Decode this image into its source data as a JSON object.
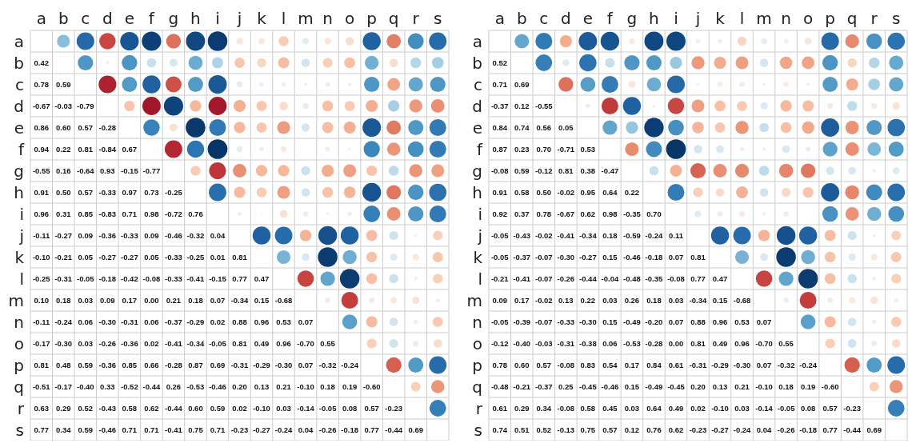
{
  "chart_data": [
    {
      "type": "heatmap",
      "categories": [
        "a",
        "b",
        "c",
        "d",
        "e",
        "f",
        "g",
        "h",
        "i",
        "j",
        "k",
        "l",
        "m",
        "n",
        "o",
        "p",
        "q",
        "r",
        "s"
      ],
      "y_categories": [
        "a",
        "b",
        "c",
        "d",
        "e",
        "f",
        "g",
        "h",
        "i",
        "j",
        "k",
        "l",
        "m",
        "n",
        "o",
        "p",
        "q",
        "r",
        "s"
      ],
      "grid": true,
      "cells": [
        [
          null,
          null,
          null,
          null,
          null,
          null,
          null,
          null,
          null,
          null,
          null,
          null,
          null,
          null,
          null,
          null,
          null,
          null,
          null
        ],
        [
          0.42,
          null,
          null,
          null,
          null,
          null,
          null,
          null,
          null,
          null,
          null,
          null,
          null,
          null,
          null,
          null,
          null,
          null,
          null
        ],
        [
          0.78,
          0.59,
          null,
          null,
          null,
          null,
          null,
          null,
          null,
          null,
          null,
          null,
          null,
          null,
          null,
          null,
          null,
          null,
          null
        ],
        [
          -0.67,
          -0.03,
          -0.79,
          null,
          null,
          null,
          null,
          null,
          null,
          null,
          null,
          null,
          null,
          null,
          null,
          null,
          null,
          null,
          null
        ],
        [
          0.86,
          0.6,
          0.57,
          -0.28,
          null,
          null,
          null,
          null,
          null,
          null,
          null,
          null,
          null,
          null,
          null,
          null,
          null,
          null,
          null
        ],
        [
          0.94,
          0.22,
          0.81,
          -0.84,
          0.67,
          null,
          null,
          null,
          null,
          null,
          null,
          null,
          null,
          null,
          null,
          null,
          null,
          null,
          null
        ],
        [
          -0.55,
          0.16,
          -0.64,
          0.93,
          -0.15,
          -0.77,
          null,
          null,
          null,
          null,
          null,
          null,
          null,
          null,
          null,
          null,
          null,
          null,
          null
        ],
        [
          0.91,
          0.5,
          0.57,
          -0.33,
          0.97,
          0.73,
          -0.25,
          null,
          null,
          null,
          null,
          null,
          null,
          null,
          null,
          null,
          null,
          null,
          null
        ],
        [
          0.96,
          0.31,
          0.85,
          -0.83,
          0.71,
          0.98,
          -0.72,
          0.76,
          null,
          null,
          null,
          null,
          null,
          null,
          null,
          null,
          null,
          null,
          null
        ],
        [
          -0.11,
          -0.27,
          0.09,
          -0.36,
          -0.33,
          0.09,
          -0.46,
          -0.32,
          0.04,
          null,
          null,
          null,
          null,
          null,
          null,
          null,
          null,
          null,
          null
        ],
        [
          -0.1,
          -0.21,
          0.05,
          -0.27,
          -0.27,
          0.05,
          -0.33,
          -0.25,
          0.01,
          0.81,
          null,
          null,
          null,
          null,
          null,
          null,
          null,
          null,
          null
        ],
        [
          -0.25,
          -0.31,
          -0.05,
          -0.18,
          -0.42,
          -0.08,
          -0.33,
          -0.41,
          -0.15,
          0.77,
          0.47,
          null,
          null,
          null,
          null,
          null,
          null,
          null,
          null
        ],
        [
          0.1,
          0.18,
          0.03,
          0.09,
          0.17,
          0.0,
          0.21,
          0.18,
          0.07,
          -0.34,
          0.15,
          -0.68,
          null,
          null,
          null,
          null,
          null,
          null,
          null
        ],
        [
          -0.11,
          -0.24,
          0.06,
          -0.3,
          -0.31,
          0.06,
          -0.37,
          -0.29,
          0.02,
          0.88,
          0.96,
          0.53,
          0.07,
          null,
          null,
          null,
          null,
          null,
          null
        ],
        [
          -0.17,
          -0.3,
          0.03,
          -0.26,
          -0.36,
          0.02,
          -0.41,
          -0.34,
          -0.05,
          0.81,
          0.49,
          0.96,
          -0.7,
          0.55,
          null,
          null,
          null,
          null,
          null
        ],
        [
          0.81,
          0.48,
          0.59,
          -0.36,
          0.85,
          0.66,
          -0.28,
          0.87,
          0.69,
          -0.31,
          -0.29,
          -0.3,
          0.07,
          -0.32,
          -0.24,
          null,
          null,
          null,
          null
        ],
        [
          -0.51,
          -0.17,
          -0.4,
          0.33,
          -0.52,
          -0.44,
          0.26,
          -0.53,
          -0.46,
          0.2,
          0.13,
          0.21,
          -0.1,
          0.18,
          0.19,
          -0.6,
          null,
          null,
          null
        ],
        [
          0.63,
          0.29,
          0.52,
          -0.43,
          0.58,
          0.62,
          -0.44,
          0.6,
          0.59,
          0.02,
          -0.1,
          0.03,
          -0.14,
          -0.05,
          0.08,
          0.57,
          -0.23,
          null,
          null
        ],
        [
          0.77,
          0.34,
          0.59,
          -0.46,
          0.71,
          0.71,
          -0.41,
          0.75,
          0.71,
          -0.23,
          -0.27,
          -0.24,
          0.04,
          -0.26,
          -0.18,
          0.77,
          -0.44,
          0.69,
          null
        ]
      ],
      "cell_labels": [
        [
          null,
          null,
          null,
          null,
          null,
          null,
          null,
          null,
          null,
          null,
          null,
          null,
          null,
          null,
          null,
          null,
          null,
          null,
          null
        ],
        [
          "0.42",
          null,
          null,
          null,
          null,
          null,
          null,
          null,
          null,
          null,
          null,
          null,
          null,
          null,
          null,
          null,
          null,
          null,
          null
        ],
        [
          "0.78",
          "0.59",
          null,
          null,
          null,
          null,
          null,
          null,
          null,
          null,
          null,
          null,
          null,
          null,
          null,
          null,
          null,
          null,
          null
        ],
        [
          "-0.67",
          "-0.03",
          "-0.79",
          null,
          null,
          null,
          null,
          null,
          null,
          null,
          null,
          null,
          null,
          null,
          null,
          null,
          null,
          null,
          null
        ],
        [
          "0.86",
          "0.60",
          "0.57",
          "-0.28",
          null,
          null,
          null,
          null,
          null,
          null,
          null,
          null,
          null,
          null,
          null,
          null,
          null,
          null,
          null
        ],
        [
          "0.94",
          "0.22",
          "0.81",
          "-0.84",
          "0.67",
          null,
          null,
          null,
          null,
          null,
          null,
          null,
          null,
          null,
          null,
          null,
          null,
          null,
          null
        ],
        [
          "-0.55",
          "0.16",
          "-0.64",
          "0.93",
          "-0.15",
          "-0.77",
          null,
          null,
          null,
          null,
          null,
          null,
          null,
          null,
          null,
          null,
          null,
          null,
          null
        ],
        [
          "0.91",
          "0.50",
          "0.57",
          "-0.33",
          "0.97",
          "0.73",
          "-0.25",
          null,
          null,
          null,
          null,
          null,
          null,
          null,
          null,
          null,
          null,
          null,
          null
        ],
        [
          "0.96",
          "0.31",
          "0.85",
          "-0.83",
          "0.71",
          "0.98",
          "-0.72",
          "0.76",
          null,
          null,
          null,
          null,
          null,
          null,
          null,
          null,
          null,
          null,
          null
        ],
        [
          "-0.11",
          "-0.27",
          "0.09",
          "-0.36",
          "-0.33",
          "0.09",
          "-0.46",
          "-0.32",
          "0.04",
          null,
          null,
          null,
          null,
          null,
          null,
          null,
          null,
          null,
          null
        ],
        [
          "-0.10",
          "-0.21",
          "0.05",
          "-0.27",
          "-0.27",
          "0.05",
          "-0.33",
          "-0.25",
          "0.01",
          "0.81",
          null,
          null,
          null,
          null,
          null,
          null,
          null,
          null,
          null
        ],
        [
          "-0.25",
          "-0.31",
          "-0.05",
          "-0.18",
          "-0.42",
          "-0.08",
          "-0.33",
          "-0.41",
          "-0.15",
          "0.77",
          "0.47",
          null,
          null,
          null,
          null,
          null,
          null,
          null,
          null
        ],
        [
          "0.10",
          "0.18",
          "0.03",
          "0.09",
          "0.17",
          "0.00",
          "0.21",
          "0.18",
          "0.07",
          "-0.34",
          "0.15",
          "-0.68",
          null,
          null,
          null,
          null,
          null,
          null,
          null
        ],
        [
          "-0.11",
          "-0.24",
          "0.06",
          "-0.30",
          "-0.31",
          "0.06",
          "-0.37",
          "-0.29",
          "0.02",
          "0.88",
          "0.96",
          "0.53",
          "0.07",
          null,
          null,
          null,
          null,
          null,
          null
        ],
        [
          "-0.17",
          "-0.30",
          "0.03",
          "-0.26",
          "-0.36",
          "0.02",
          "-0.41",
          "-0.34",
          "-0.05",
          "0.81",
          "0.49",
          "0.96",
          "-0.70",
          "0.55",
          null,
          null,
          null,
          null,
          null
        ],
        [
          "0.81",
          "0.48",
          "0.59",
          "-0.36",
          "0.85",
          "0.66",
          "-0.28",
          "0.87",
          "0.69",
          "-0.31",
          "-0.29",
          "-0.30",
          "0.07",
          "-0.32",
          "-0.24",
          null,
          null,
          null,
          null
        ],
        [
          "-0.51",
          "-0.17",
          "-0.40",
          "0.33",
          "-0.52",
          "-0.44",
          "0.26",
          "-0.53",
          "-0.46",
          "0.20",
          "0.13",
          "0.21",
          "-0.10",
          "0.18",
          "0.19",
          "-0.60",
          null,
          null,
          null
        ],
        [
          "0.63",
          "0.29",
          "0.52",
          "-0.43",
          "0.58",
          "0.62",
          "-0.44",
          "0.60",
          "0.59",
          "0.02",
          "-0.10",
          "0.03",
          "-0.14",
          "-0.05",
          "0.08",
          "0.57",
          "-0.23",
          null,
          null
        ],
        [
          "0.77",
          "0.34",
          "0.59",
          "-0.46",
          "0.71",
          "0.71",
          "-0.41",
          "0.75",
          "0.71",
          "-0.23",
          "-0.27",
          "-0.24",
          "0.04",
          "-0.26",
          "-0.18",
          "0.77",
          "-0.44",
          "0.69",
          null
        ]
      ]
    },
    {
      "type": "heatmap",
      "categories": [
        "a",
        "b",
        "c",
        "d",
        "e",
        "f",
        "g",
        "h",
        "i",
        "j",
        "k",
        "l",
        "m",
        "n",
        "o",
        "p",
        "q",
        "r",
        "s"
      ],
      "y_categories": [
        "a",
        "b",
        "c",
        "d",
        "e",
        "f",
        "g",
        "h",
        "i",
        "j",
        "k",
        "l",
        "m",
        "n",
        "o",
        "p",
        "q",
        "r",
        "s"
      ],
      "grid": true,
      "cells": [
        [
          null,
          null,
          null,
          null,
          null,
          null,
          null,
          null,
          null,
          null,
          null,
          null,
          null,
          null,
          null,
          null,
          null,
          null,
          null
        ],
        [
          0.52,
          null,
          null,
          null,
          null,
          null,
          null,
          null,
          null,
          null,
          null,
          null,
          null,
          null,
          null,
          null,
          null,
          null,
          null
        ],
        [
          0.71,
          0.69,
          null,
          null,
          null,
          null,
          null,
          null,
          null,
          null,
          null,
          null,
          null,
          null,
          null,
          null,
          null,
          null,
          null
        ],
        [
          -0.37,
          0.12,
          -0.55,
          null,
          null,
          null,
          null,
          null,
          null,
          null,
          null,
          null,
          null,
          null,
          null,
          null,
          null,
          null,
          null
        ],
        [
          0.84,
          0.74,
          0.56,
          0.05,
          null,
          null,
          null,
          null,
          null,
          null,
          null,
          null,
          null,
          null,
          null,
          null,
          null,
          null,
          null
        ],
        [
          0.87,
          0.23,
          0.7,
          -0.71,
          0.53,
          null,
          null,
          null,
          null,
          null,
          null,
          null,
          null,
          null,
          null,
          null,
          null,
          null,
          null
        ],
        [
          -0.08,
          0.59,
          -0.12,
          0.81,
          0.38,
          -0.47,
          null,
          null,
          null,
          null,
          null,
          null,
          null,
          null,
          null,
          null,
          null,
          null,
          null
        ],
        [
          0.91,
          0.58,
          0.5,
          -0.02,
          0.95,
          0.64,
          0.22,
          null,
          null,
          null,
          null,
          null,
          null,
          null,
          null,
          null,
          null,
          null,
          null
        ],
        [
          0.92,
          0.37,
          0.78,
          -0.67,
          0.62,
          0.98,
          -0.35,
          0.7,
          null,
          null,
          null,
          null,
          null,
          null,
          null,
          null,
          null,
          null,
          null
        ],
        [
          -0.05,
          -0.43,
          -0.02,
          -0.41,
          -0.34,
          0.18,
          -0.59,
          -0.24,
          0.11,
          null,
          null,
          null,
          null,
          null,
          null,
          null,
          null,
          null,
          null
        ],
        [
          -0.05,
          -0.37,
          -0.07,
          -0.3,
          -0.27,
          0.15,
          -0.46,
          -0.18,
          0.07,
          0.81,
          null,
          null,
          null,
          null,
          null,
          null,
          null,
          null,
          null
        ],
        [
          -0.21,
          -0.41,
          -0.07,
          -0.26,
          -0.44,
          -0.04,
          -0.48,
          -0.35,
          -0.08,
          0.77,
          0.47,
          null,
          null,
          null,
          null,
          null,
          null,
          null,
          null
        ],
        [
          0.09,
          0.17,
          -0.02,
          0.13,
          0.22,
          0.03,
          0.26,
          0.18,
          0.03,
          -0.34,
          0.15,
          -0.68,
          null,
          null,
          null,
          null,
          null,
          null,
          null
        ],
        [
          -0.05,
          -0.39,
          -0.07,
          -0.33,
          -0.3,
          0.15,
          -0.49,
          -0.2,
          0.07,
          0.88,
          0.96,
          0.53,
          0.07,
          null,
          null,
          null,
          null,
          null,
          null
        ],
        [
          -0.12,
          -0.4,
          -0.03,
          -0.31,
          -0.38,
          0.06,
          -0.53,
          -0.28,
          0.0,
          0.81,
          0.49,
          0.96,
          -0.7,
          0.55,
          null,
          null,
          null,
          null,
          null
        ],
        [
          0.78,
          0.6,
          0.57,
          -0.08,
          0.83,
          0.54,
          0.17,
          0.84,
          0.61,
          -0.31,
          -0.29,
          -0.3,
          0.07,
          -0.32,
          -0.24,
          null,
          null,
          null,
          null
        ],
        [
          -0.48,
          -0.21,
          -0.37,
          0.25,
          -0.45,
          -0.46,
          0.15,
          -0.49,
          -0.45,
          0.2,
          0.13,
          0.21,
          -0.1,
          0.18,
          0.19,
          -0.6,
          null,
          null,
          null
        ],
        [
          0.61,
          0.29,
          0.34,
          -0.08,
          0.58,
          0.45,
          0.03,
          0.64,
          0.49,
          0.02,
          -0.1,
          0.03,
          -0.14,
          -0.05,
          0.08,
          0.57,
          -0.23,
          null,
          null
        ],
        [
          0.74,
          0.51,
          0.52,
          -0.13,
          0.75,
          0.57,
          0.12,
          0.76,
          0.62,
          -0.23,
          -0.27,
          -0.24,
          0.04,
          -0.26,
          -0.18,
          0.77,
          -0.44,
          0.69,
          null
        ]
      ],
      "cell_labels": [
        [
          null,
          null,
          null,
          null,
          null,
          null,
          null,
          null,
          null,
          null,
          null,
          null,
          null,
          null,
          null,
          null,
          null,
          null,
          null
        ],
        [
          "0.52",
          null,
          null,
          null,
          null,
          null,
          null,
          null,
          null,
          null,
          null,
          null,
          null,
          null,
          null,
          null,
          null,
          null,
          null
        ],
        [
          "0.71",
          "0.69",
          null,
          null,
          null,
          null,
          null,
          null,
          null,
          null,
          null,
          null,
          null,
          null,
          null,
          null,
          null,
          null,
          null
        ],
        [
          "-0.37",
          "0.12",
          "-0.55",
          null,
          null,
          null,
          null,
          null,
          null,
          null,
          null,
          null,
          null,
          null,
          null,
          null,
          null,
          null,
          null
        ],
        [
          "0.84",
          "0.74",
          "0.56",
          "0.05",
          null,
          null,
          null,
          null,
          null,
          null,
          null,
          null,
          null,
          null,
          null,
          null,
          null,
          null,
          null
        ],
        [
          "0.87",
          "0.23",
          "0.70",
          "-0.71",
          "0.53",
          null,
          null,
          null,
          null,
          null,
          null,
          null,
          null,
          null,
          null,
          null,
          null,
          null,
          null
        ],
        [
          "-0.08",
          "0.59",
          "-0.12",
          "0.81",
          "0.38",
          "-0.47",
          null,
          null,
          null,
          null,
          null,
          null,
          null,
          null,
          null,
          null,
          null,
          null,
          null
        ],
        [
          "0.91",
          "0.58",
          "0.50",
          "-0.02",
          "0.95",
          "0.64",
          "0.22",
          null,
          null,
          null,
          null,
          null,
          null,
          null,
          null,
          null,
          null,
          null,
          null
        ],
        [
          "0.92",
          "0.37",
          "0.78",
          "-0.67",
          "0.62",
          "0.98",
          "-0.35",
          "0.70",
          null,
          null,
          null,
          null,
          null,
          null,
          null,
          null,
          null,
          null,
          null
        ],
        [
          "-0.05",
          "-0.43",
          "-0.02",
          "-0.41",
          "-0.34",
          "0.18",
          "-0.59",
          "-0.24",
          "0.11",
          null,
          null,
          null,
          null,
          null,
          null,
          null,
          null,
          null,
          null
        ],
        [
          "-0.05",
          "-0.37",
          "-0.07",
          "-0.30",
          "-0.27",
          "0.15",
          "-0.46",
          "-0.18",
          "0.07",
          "0.81",
          null,
          null,
          null,
          null,
          null,
          null,
          null,
          null,
          null
        ],
        [
          "-0.21",
          "-0.41",
          "-0.07",
          "-0.26",
          "-0.44",
          "-0.04",
          "-0.48",
          "-0.35",
          "-0.08",
          "0.77",
          "0.47",
          null,
          null,
          null,
          null,
          null,
          null,
          null,
          null
        ],
        [
          "0.09",
          "0.17",
          "-0.02",
          "0.13",
          "0.22",
          "0.03",
          "0.26",
          "0.18",
          "0.03",
          "-0.34",
          "0.15",
          "-0.68",
          null,
          null,
          null,
          null,
          null,
          null,
          null
        ],
        [
          "-0.05",
          "-0.39",
          "-0.07",
          "-0.33",
          "-0.30",
          "0.15",
          "-0.49",
          "-0.20",
          "0.07",
          "0.88",
          "0.96",
          "0.53",
          "0.07",
          null,
          null,
          null,
          null,
          null,
          null
        ],
        [
          "-0.12",
          "-0.40",
          "-0.03",
          "-0.31",
          "-0.38",
          "0.06",
          "-0.53",
          "-0.28",
          "0.00",
          "0.81",
          "0.49",
          "0.96",
          "-0.70",
          "0.55",
          null,
          null,
          null,
          null,
          null
        ],
        [
          "0.78",
          "0.60",
          "0.57",
          "-0.08",
          "0.83",
          "0.54",
          "0.17",
          "0.84",
          "0.61",
          "-0.31",
          "-0.29",
          "-0.30",
          "0.07",
          "-0.32",
          "-0.24",
          null,
          null,
          null,
          null
        ],
        [
          "-0.48",
          "-0.21",
          "-0.37",
          "0.25",
          "-0.45",
          "-0.46",
          "0.15",
          "-0.49",
          "-0.45",
          "0.20",
          "0.13",
          "0.21",
          "-0.10",
          "0.18",
          "0.19",
          "-0.60",
          null,
          null,
          null
        ],
        [
          "0.61",
          "0.29",
          "0.34",
          "-0.08",
          "0.58",
          "0.45",
          "0.03",
          "0.64",
          "0.49",
          "0.02",
          "-0.10",
          "0.03",
          "-0.14",
          "-0.05",
          "0.08",
          "0.57",
          "-0.23",
          null,
          null
        ],
        [
          "0.74",
          "0.51",
          "0.52",
          "-0.13",
          "0.75",
          "0.57",
          "0.12",
          "0.76",
          "0.62",
          "-0.23",
          "-0.27",
          "-0.24",
          "0.04",
          "-0.26",
          "-0.18",
          "0.77",
          "-0.44",
          "0.69",
          null
        ]
      ]
    }
  ]
}
